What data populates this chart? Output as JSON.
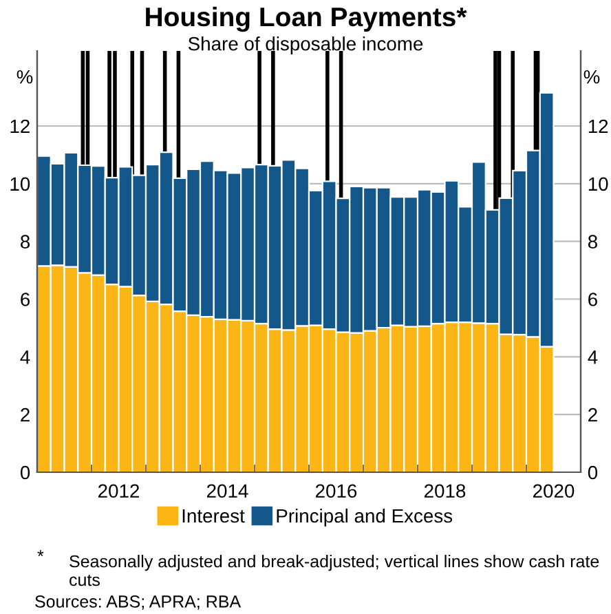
{
  "chart_data": {
    "type": "bar",
    "stacked": true,
    "title": "Housing Loan Payments*",
    "subtitle": "Share of disposable income",
    "ylabel": "%",
    "y2label": "%",
    "x": [
      2011.125,
      2011.375,
      2011.625,
      2011.875,
      2012.125,
      2012.375,
      2012.625,
      2012.875,
      2013.125,
      2013.375,
      2013.625,
      2013.875,
      2014.125,
      2014.375,
      2014.625,
      2014.875,
      2015.125,
      2015.375,
      2015.625,
      2015.875,
      2016.125,
      2016.375,
      2016.625,
      2016.875,
      2017.125,
      2017.375,
      2017.625,
      2017.875,
      2018.125,
      2018.375,
      2018.625,
      2018.875,
      2019.125,
      2019.375,
      2019.625,
      2019.875,
      2020.125,
      2020.375
    ],
    "series": [
      {
        "name": "Interest",
        "color": "#fbb515",
        "values": [
          7.15,
          7.17,
          7.12,
          6.91,
          6.83,
          6.51,
          6.43,
          6.13,
          5.92,
          5.82,
          5.58,
          5.44,
          5.39,
          5.3,
          5.28,
          5.25,
          5.15,
          4.96,
          4.93,
          5.07,
          5.09,
          4.96,
          4.85,
          4.83,
          4.9,
          5.01,
          5.09,
          5.04,
          5.06,
          5.15,
          5.2,
          5.2,
          5.17,
          5.15,
          4.78,
          4.77,
          4.69,
          4.35
        ]
      },
      {
        "name": "Principal and Excess",
        "color": "#14578a",
        "values": [
          3.81,
          3.52,
          3.95,
          3.73,
          3.78,
          3.7,
          4.15,
          4.16,
          4.74,
          5.27,
          4.61,
          5.06,
          5.39,
          5.16,
          5.09,
          5.31,
          5.51,
          5.66,
          5.89,
          5.46,
          4.67,
          5.12,
          4.64,
          5.07,
          4.96,
          4.85,
          4.45,
          4.5,
          4.73,
          4.56,
          4.9,
          4.0,
          5.58,
          3.94,
          4.72,
          5.68,
          6.46,
          8.8
        ]
      }
    ],
    "xlim": [
      2011,
      2021
    ],
    "xticks": [
      {
        "value": 2012,
        "label": null
      },
      {
        "value": 2012.5,
        "label": "2012"
      },
      {
        "value": 2013,
        "label": null
      },
      {
        "value": 2014,
        "label": null
      },
      {
        "value": 2014.5,
        "label": "2014"
      },
      {
        "value": 2015,
        "label": null
      },
      {
        "value": 2016,
        "label": null
      },
      {
        "value": 2016.5,
        "label": "2016"
      },
      {
        "value": 2017,
        "label": null
      },
      {
        "value": 2018,
        "label": null
      },
      {
        "value": 2018.5,
        "label": "2018"
      },
      {
        "value": 2019,
        "label": null
      },
      {
        "value": 2020,
        "label": null
      },
      {
        "value": 2020.5,
        "label": "2020"
      }
    ],
    "ylim": [
      0,
      14.6
    ],
    "yticks": [
      0,
      2,
      4,
      6,
      8,
      10,
      12
    ],
    "y2lim": [
      0,
      14.6
    ],
    "y2ticks": [
      0,
      2,
      4,
      6,
      8,
      10,
      12
    ],
    "ref_lines": [
      {
        "axis": "x",
        "value": 2011.84,
        "color": "#000000"
      },
      {
        "axis": "x",
        "value": 2011.93,
        "color": "#000000"
      },
      {
        "axis": "x",
        "value": 2012.33,
        "color": "#000000"
      },
      {
        "axis": "x",
        "value": 2012.43,
        "color": "#000000"
      },
      {
        "axis": "x",
        "value": 2012.75,
        "color": "#000000"
      },
      {
        "axis": "x",
        "value": 2012.93,
        "color": "#000000"
      },
      {
        "axis": "x",
        "value": 2013.35,
        "color": "#000000"
      },
      {
        "axis": "x",
        "value": 2013.6,
        "color": "#000000"
      },
      {
        "axis": "x",
        "value": 2015.09,
        "color": "#000000"
      },
      {
        "axis": "x",
        "value": 2015.34,
        "color": "#000000"
      },
      {
        "axis": "x",
        "value": 2016.34,
        "color": "#000000"
      },
      {
        "axis": "x",
        "value": 2016.59,
        "color": "#000000"
      },
      {
        "axis": "x",
        "value": 2019.43,
        "color": "#000000"
      },
      {
        "axis": "x",
        "value": 2019.5,
        "color": "#000000"
      },
      {
        "axis": "x",
        "value": 2019.75,
        "color": "#000000"
      },
      {
        "axis": "x",
        "value": 2020.17,
        "color": "#000000"
      },
      {
        "axis": "x",
        "value": 2020.21,
        "color": "#000000"
      }
    ],
    "grid": "y",
    "legend": "bottom",
    "annotations": [
      "*",
      "Seasonally adjusted and break-adjusted; vertical lines show cash rate cuts",
      "Sources: ABS; APRA; RBA"
    ]
  }
}
